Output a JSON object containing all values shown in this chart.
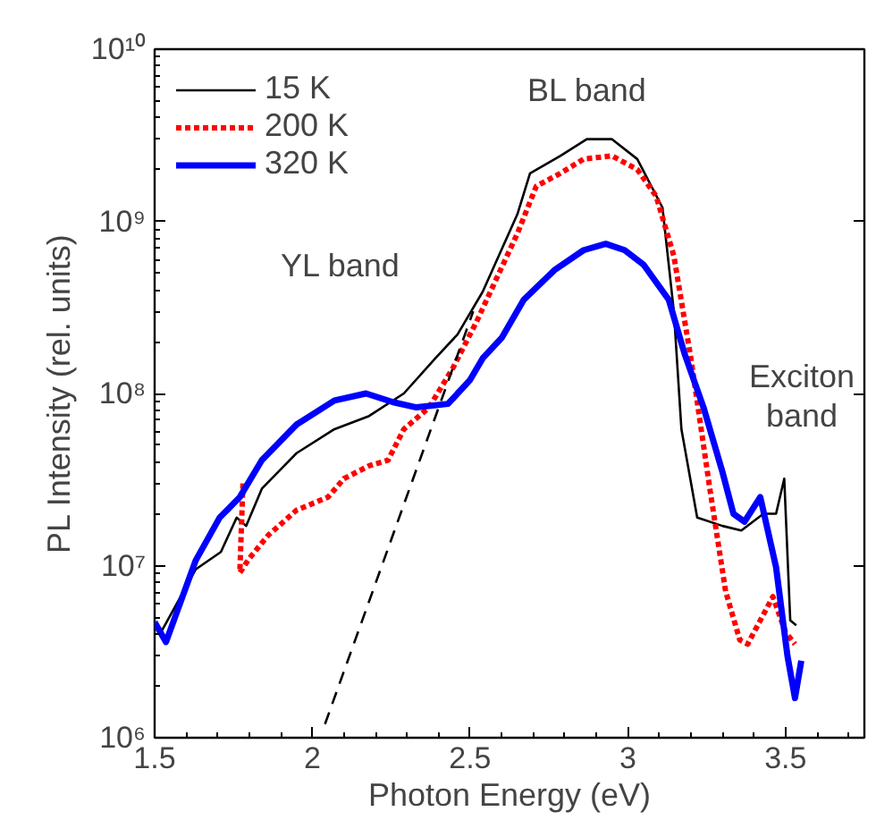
{
  "chart_data": {
    "type": "line",
    "xlabel": "Photon Energy (eV)",
    "ylabel": "PL Intensity (rel. units)",
    "log": "y",
    "xlim": [
      1.5,
      3.75
    ],
    "xticks": [
      {
        "value": 1.5,
        "label": "1.5"
      },
      2,
      {
        "value": 2.5,
        "label": "2.5"
      },
      3,
      {
        "value": 3.5,
        "label": "3.5"
      }
    ],
    "ylim": [
      1000000,
      10000000000
    ],
    "yticks": [
      {
        "value": 1000000,
        "label": "10⁶"
      },
      {
        "value": 10000000,
        "label": "10⁷"
      },
      {
        "value": 100000000,
        "label": "10⁸"
      },
      {
        "value": 1000000000,
        "label": "10⁹"
      },
      {
        "value": 10000000000,
        "label": "10¹⁰"
      }
    ],
    "grid": false,
    "legend": "top left",
    "series": [
      {
        "name": "15 K",
        "color": "#000000",
        "line_style": "solid",
        "x": [
          1.52,
          1.63,
          1.71,
          1.76,
          1.79,
          1.84,
          1.95,
          2.07,
          2.18,
          2.29,
          2.39,
          2.46,
          2.54,
          2.65,
          2.69,
          2.786,
          2.87,
          2.95,
          3.03,
          3.11,
          3.146,
          3.17,
          3.22,
          3.3,
          3.36,
          3.43,
          3.47,
          3.496,
          3.515,
          3.534
        ],
        "values": [
          4100000.0,
          9500000.0,
          12000000.0,
          19000000.0,
          17000000.0,
          28000000.0,
          45000000.0,
          62000000.0,
          74000000.0,
          100000000.0,
          160000000.0,
          220000000.0,
          390000000.0,
          1100000000.0,
          1900000000.0,
          2400000000.0,
          3000000000.0,
          3000000000.0,
          2300000000.0,
          1200000000.0,
          300000000.0,
          62000000.0,
          19000000.0,
          17000000.0,
          16000000.0,
          20000000.0,
          20000000.0,
          32000000.0,
          4800000.0,
          4500000.0
        ]
      },
      {
        "name": "200 K",
        "color": "#ff0000",
        "line_style": "dotted",
        "x": [
          1.78,
          1.77,
          1.8,
          1.86,
          1.95,
          2.05,
          2.1,
          2.18,
          2.24,
          2.29,
          2.37,
          2.445,
          2.52,
          2.65,
          2.71,
          2.786,
          2.86,
          2.95,
          3.03,
          3.09,
          3.146,
          3.2,
          3.26,
          3.31,
          3.355,
          3.38,
          3.43,
          3.46,
          3.5,
          3.53
        ],
        "values": [
          30000000.0,
          9100000.0,
          11000000.0,
          15000000.0,
          21000000.0,
          25000000.0,
          32000000.0,
          38000000.0,
          41000000.0,
          62000000.0,
          83000000.0,
          140000000.0,
          260000000.0,
          850000000.0,
          1600000000.0,
          1900000000.0,
          2300000000.0,
          2400000000.0,
          2000000000.0,
          1400000000.0,
          630000000.0,
          160000000.0,
          28000000.0,
          7100000.0,
          3700000.0,
          3500000.0,
          5200000.0,
          6600000.0,
          4100000.0,
          3500000.0
        ]
      },
      {
        "name": "320 K",
        "color": "#0000ff",
        "line_style": "solid",
        "x": [
          1.5,
          1.536,
          1.63,
          1.706,
          1.77,
          1.84,
          1.95,
          2.07,
          2.17,
          2.256,
          2.33,
          2.43,
          2.5,
          2.54,
          2.6,
          2.67,
          2.767,
          2.86,
          2.93,
          2.99,
          3.05,
          3.13,
          3.18,
          3.24,
          3.3,
          3.335,
          3.37,
          3.42,
          3.47,
          3.506,
          3.53,
          3.55
        ],
        "values": [
          4700000.0,
          3600000.0,
          10700000.0,
          19000000.0,
          25000000.0,
          41000000.0,
          66000000.0,
          91000000.0,
          100000000.0,
          89000000.0,
          83000000.0,
          87000000.0,
          120000000.0,
          160000000.0,
          210000000.0,
          350000000.0,
          520000000.0,
          680000000.0,
          740000000.0,
          680000000.0,
          560000000.0,
          350000000.0,
          170000000.0,
          83000000.0,
          35000000.0,
          20000000.0,
          18000000.0,
          25000000.0,
          9800000.0,
          3000000.0,
          1700000.0,
          2800000.0
        ]
      },
      {
        "color": "#000000",
        "line_style": "dashed",
        "x": [
          2.04,
          2.51
        ],
        "values": [
          1200000.0,
          300000000.0
        ]
      }
    ],
    "annotations": [
      "YL band",
      "BL band",
      "Exciton\nband"
    ]
  }
}
